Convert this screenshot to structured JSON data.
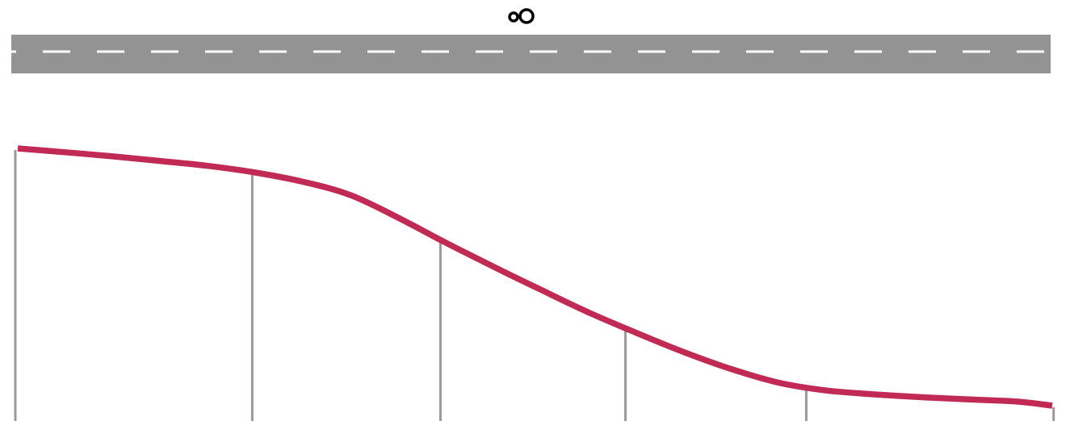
{
  "colors": {
    "road": "#939393",
    "lane_marking": "#ffffff",
    "terrain_line": "#c02a55",
    "post": "#9a9a9a",
    "vehicle": "#000000"
  },
  "vehicle": {
    "icon": "vehicle-icon"
  },
  "road": {
    "lane_marking": "dashed"
  },
  "terrain": {
    "profile": [
      [
        0.0,
        1.0
      ],
      [
        0.046,
        0.985
      ],
      [
        0.092,
        0.969
      ],
      [
        0.138,
        0.951
      ],
      [
        0.184,
        0.932
      ],
      [
        0.23,
        0.906
      ],
      [
        0.276,
        0.87
      ],
      [
        0.322,
        0.818
      ],
      [
        0.368,
        0.73
      ],
      [
        0.414,
        0.633
      ],
      [
        0.46,
        0.54
      ],
      [
        0.506,
        0.45
      ],
      [
        0.552,
        0.362
      ],
      [
        0.598,
        0.283
      ],
      [
        0.644,
        0.208
      ],
      [
        0.69,
        0.142
      ],
      [
        0.736,
        0.089
      ],
      [
        0.782,
        0.059
      ],
      [
        0.828,
        0.044
      ],
      [
        0.874,
        0.033
      ],
      [
        0.92,
        0.024
      ],
      [
        0.966,
        0.016
      ],
      [
        1.0,
        0.0
      ]
    ],
    "posts_at": [
      0.0,
      0.228,
      0.409,
      0.587,
      0.761,
      0.999
    ]
  }
}
